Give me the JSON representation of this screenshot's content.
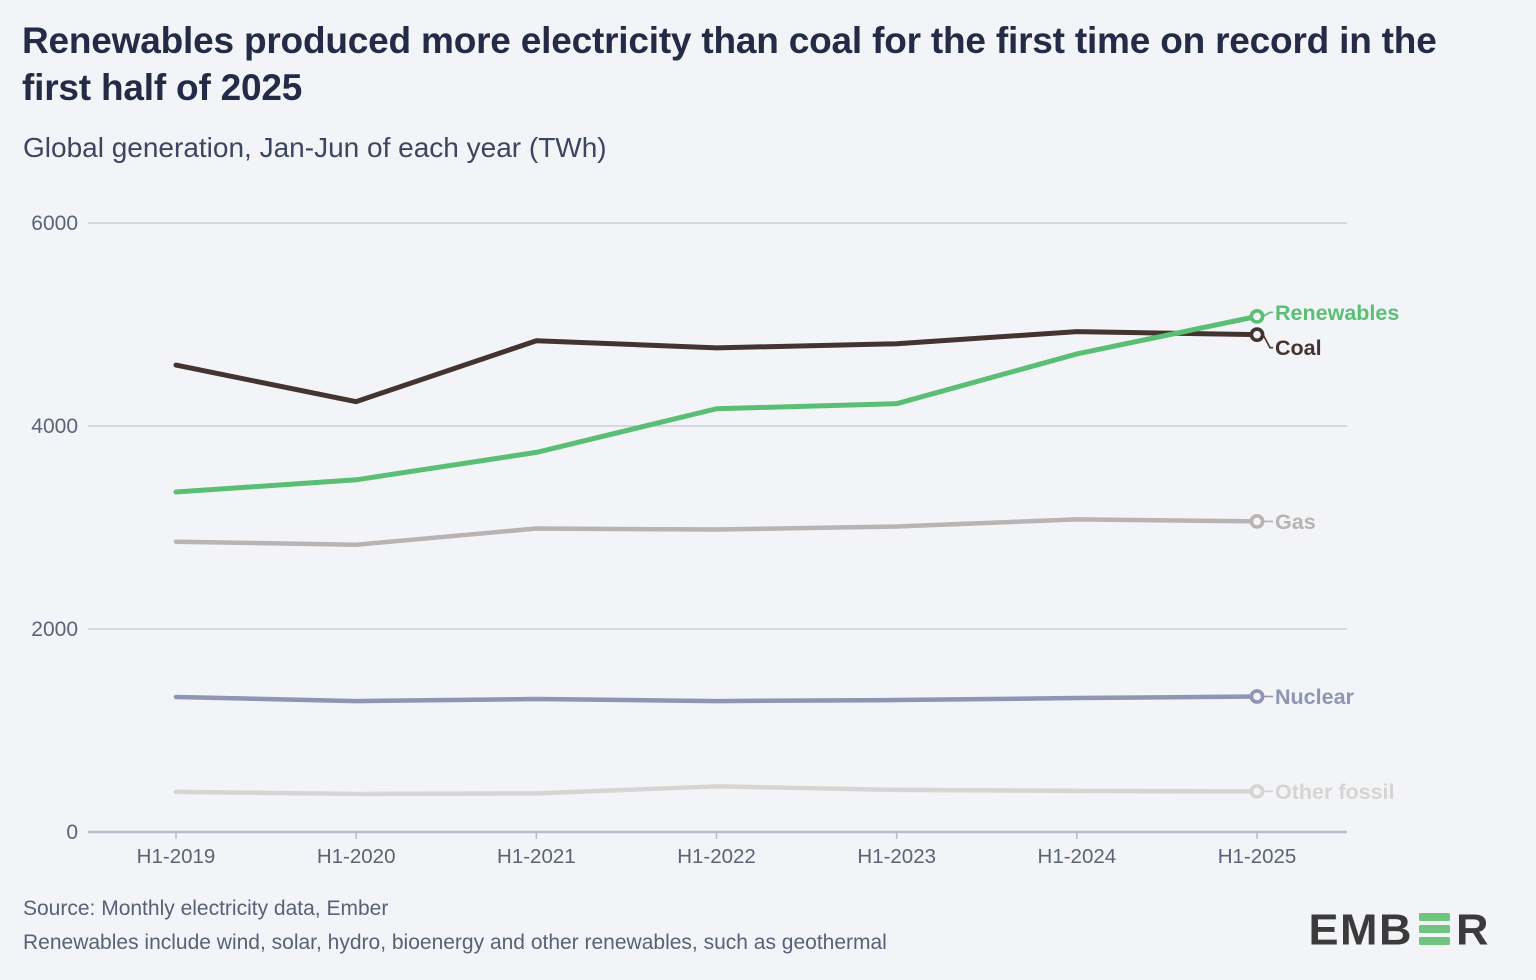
{
  "title": "Renewables produced more electricity than coal for the first time on record in the first half of 2025",
  "subtitle": "Global generation, Jan-Jun of each year (TWh)",
  "footer": {
    "source_line": "Source: Monthly electricity data, Ember",
    "note_line": "Renewables include wind, solar, hydro, bioenergy and other renewables, such as geothermal"
  },
  "logo": {
    "prefix": "EMB",
    "suffix": "R",
    "text_color": "#3b3b3b",
    "bar_color": "#70c57e"
  },
  "colors": {
    "background": "#f2f4f7",
    "title_text": "#242b47",
    "subtitle_text": "#3e4560",
    "axis_text": "#5b6377",
    "gridline": "#c9cfda",
    "axis_line": "#b6bcc8",
    "footer_text": "#596176"
  },
  "chart_data": {
    "type": "line",
    "title": "Global generation, Jan-Jun of each year (TWh)",
    "unit": "TWh",
    "categories": [
      "H1-2019",
      "H1-2020",
      "H1-2021",
      "H1-2022",
      "H1-2023",
      "H1-2024",
      "H1-2025"
    ],
    "xlabel": "",
    "ylabel": "TWh",
    "ylim": [
      0,
      6000
    ],
    "yticks": [
      0,
      2000,
      4000,
      6000
    ],
    "grid": "horizontal",
    "legend_position": "end-of-line-labels",
    "series": [
      {
        "name": "Renewables",
        "color": "#5abf74",
        "values": [
          3350,
          3470,
          3740,
          4170,
          4220,
          4710,
          5080
        ],
        "label_dy": -4
      },
      {
        "name": "Coal",
        "color": "#433430",
        "values": [
          4600,
          4240,
          4840,
          4770,
          4810,
          4930,
          4900
        ],
        "label_dy": 13
      },
      {
        "name": "Gas",
        "color": "#b9b3b1",
        "values": [
          2860,
          2830,
          2990,
          2980,
          3010,
          3080,
          3060
        ],
        "label_dy": 0
      },
      {
        "name": "Nuclear",
        "color": "#8e96b4",
        "values": [
          1330,
          1290,
          1310,
          1290,
          1300,
          1320,
          1335
        ],
        "label_dy": 0
      },
      {
        "name": "Other fossil",
        "color": "#d8d4d1",
        "values": [
          395,
          375,
          380,
          450,
          415,
          405,
          400
        ],
        "label_dy": 0
      }
    ]
  }
}
